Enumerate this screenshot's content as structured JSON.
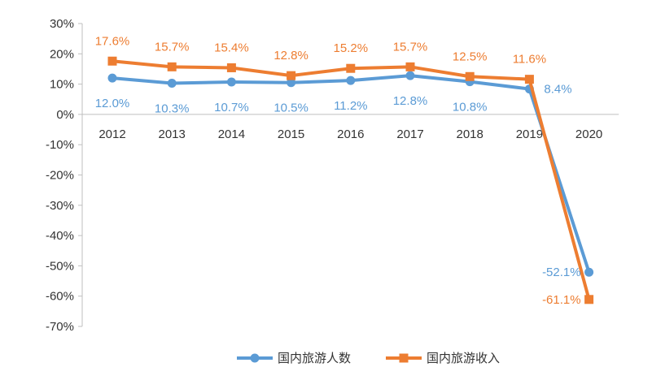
{
  "chart_data": {
    "type": "line",
    "categories": [
      "2012",
      "2013",
      "2014",
      "2015",
      "2016",
      "2017",
      "2018",
      "2019",
      "2020"
    ],
    "series": [
      {
        "name": "国内旅游人数",
        "color": "#5B9BD5",
        "marker": "circle",
        "values": [
          12.0,
          10.3,
          10.7,
          10.5,
          11.2,
          12.8,
          10.8,
          8.4,
          -52.1
        ],
        "labels": [
          "12.0%",
          "10.3%",
          "10.7%",
          "10.5%",
          "11.2%",
          "12.8%",
          "10.8%",
          "8.4%",
          "-52.1%"
        ]
      },
      {
        "name": "国内旅游收入",
        "color": "#ED7D31",
        "marker": "square",
        "values": [
          17.6,
          15.7,
          15.4,
          12.8,
          15.2,
          15.7,
          12.5,
          11.6,
          -61.1
        ],
        "labels": [
          "17.6%",
          "15.7%",
          "15.4%",
          "12.8%",
          "15.2%",
          "15.7%",
          "12.5%",
          "11.6%",
          "-61.1%"
        ]
      }
    ],
    "y_ticks": [
      "30%",
      "20%",
      "10%",
      "0%",
      "-10%",
      "-20%",
      "-30%",
      "-40%",
      "-50%",
      "-60%",
      "-70%"
    ],
    "ylim": [
      -70,
      30
    ],
    "grid": false,
    "legend_position": "bottom"
  }
}
